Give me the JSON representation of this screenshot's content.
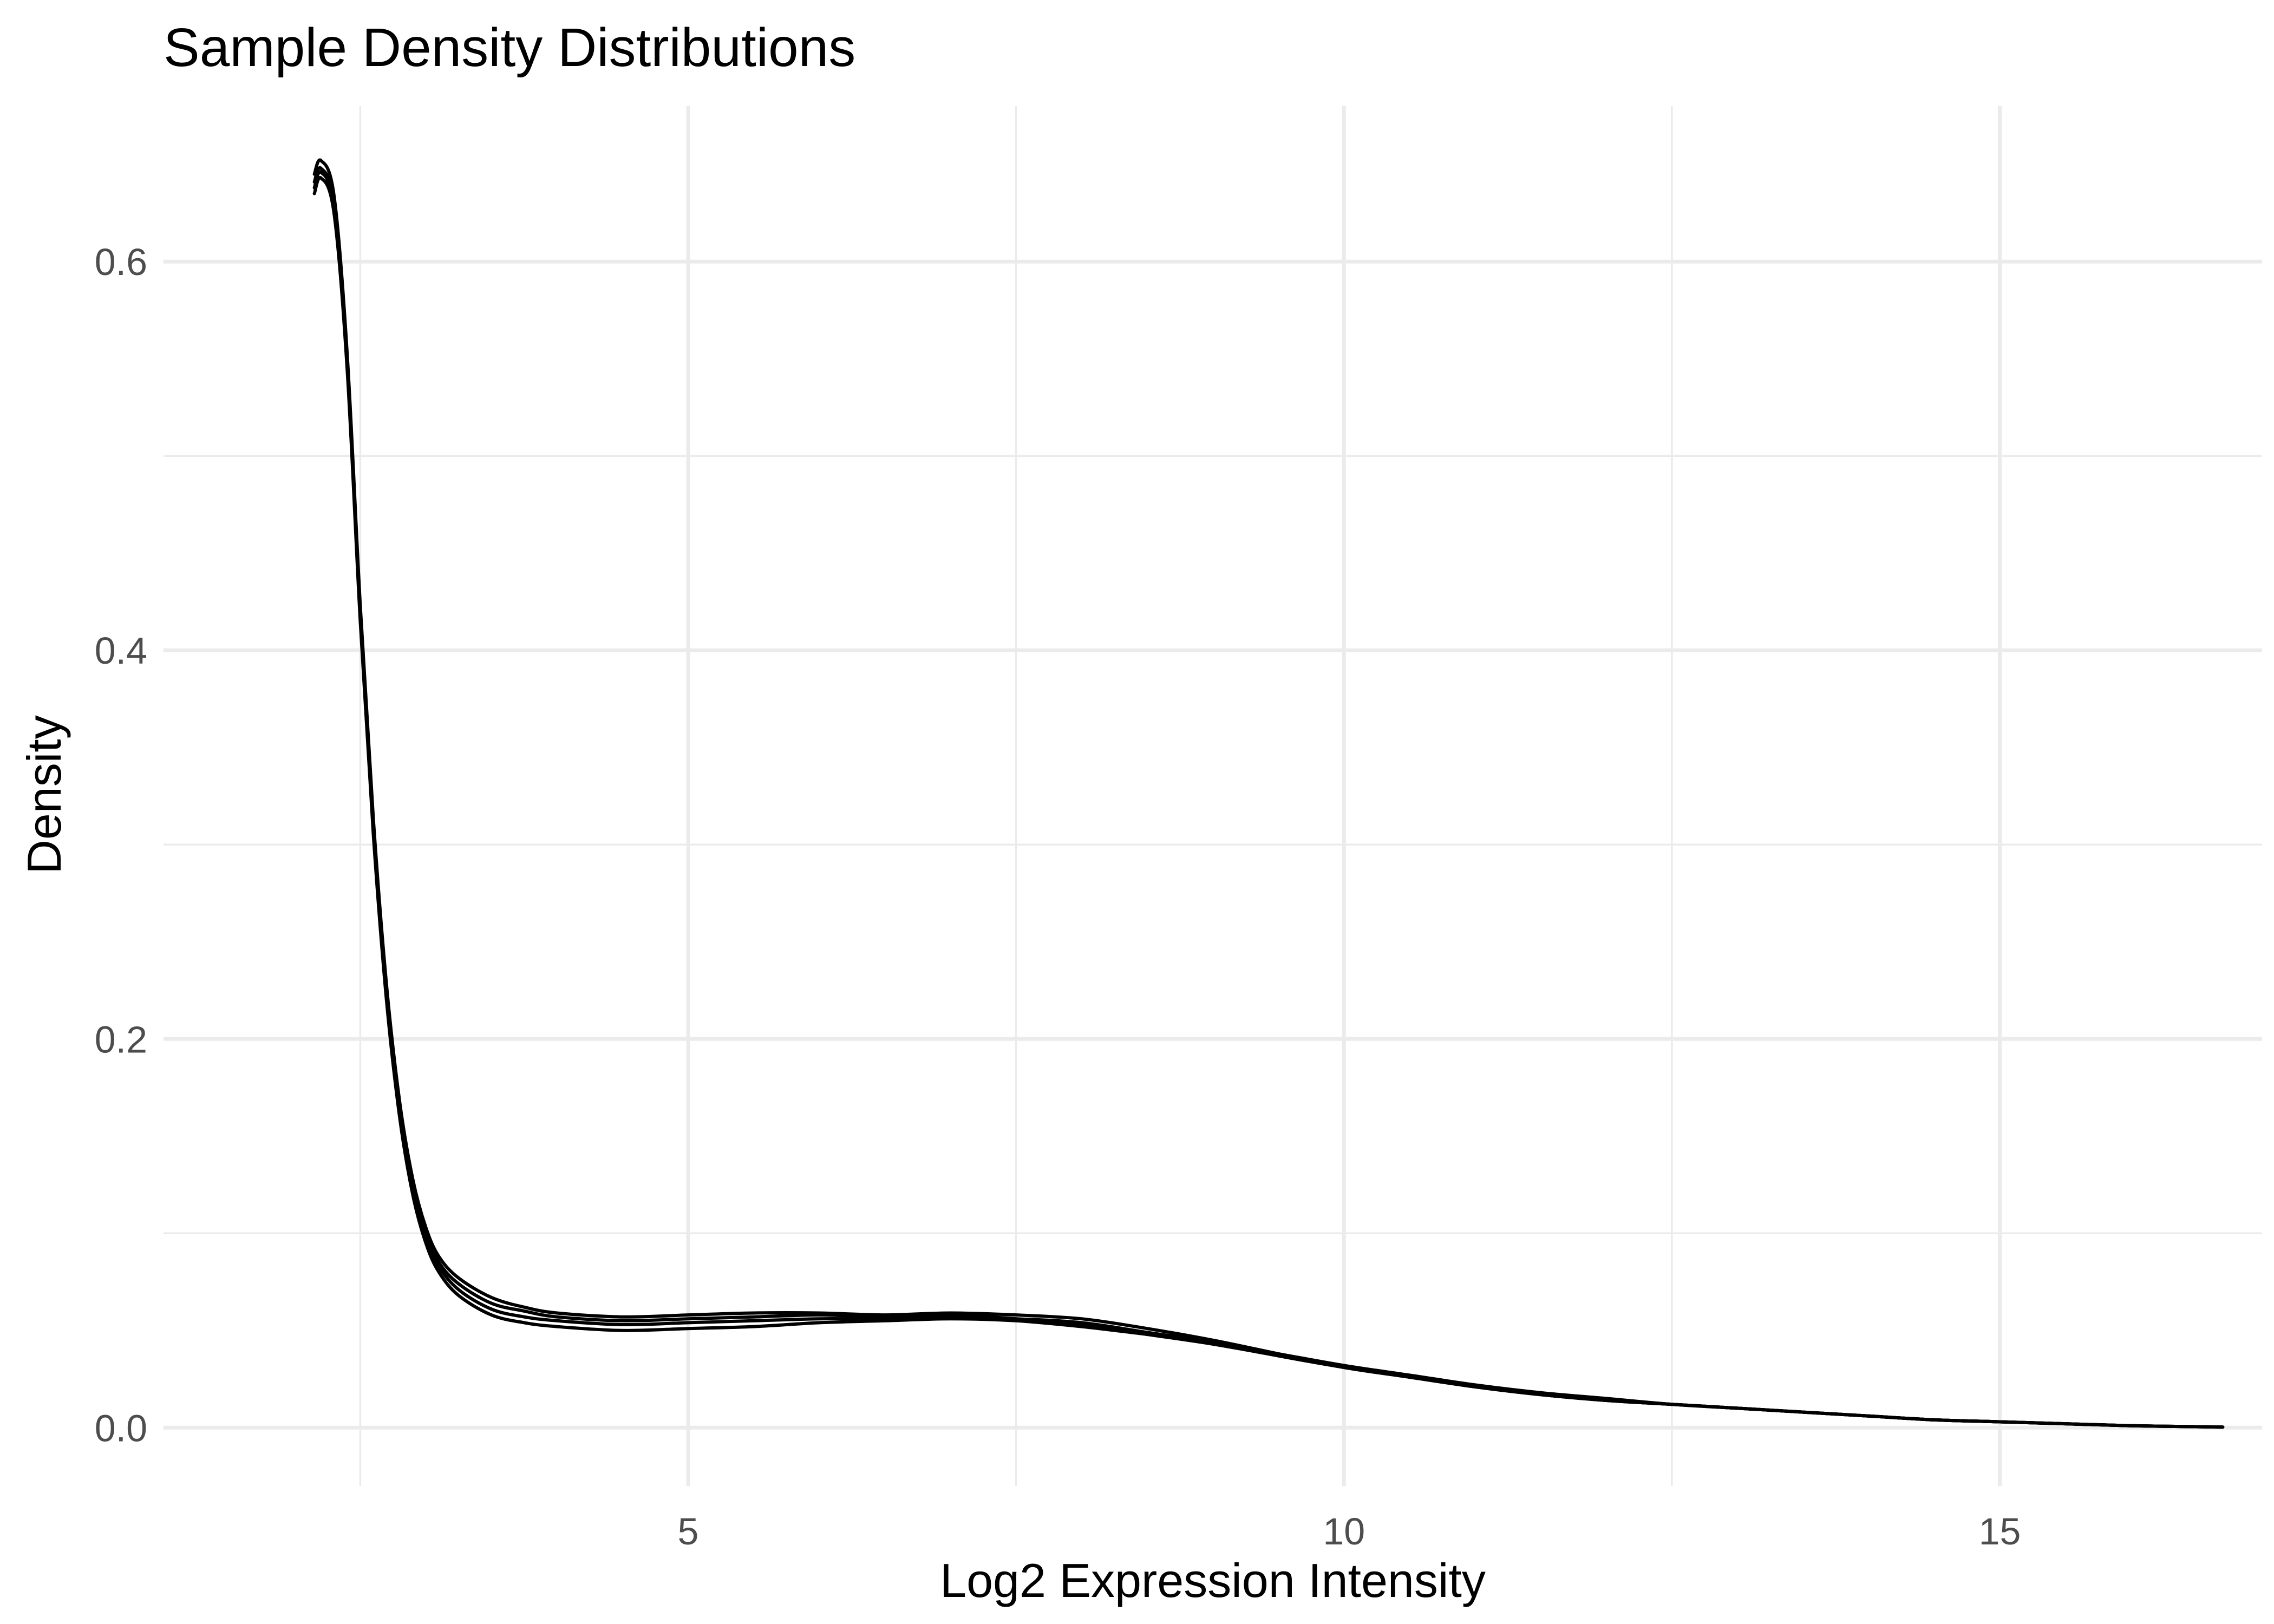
{
  "chart_data": {
    "type": "line",
    "title": "Sample Density Distributions",
    "xlabel": "Log2 Expression Intensity",
    "ylabel": "Density",
    "xlim": [
      1.0,
      17.0
    ],
    "ylim": [
      -0.03,
      0.68
    ],
    "x_ticks": [
      5,
      10,
      15
    ],
    "x_tick_labels": [
      "5",
      "10",
      "15"
    ],
    "x_minor_ticks": [
      2.5,
      7.5,
      12.5
    ],
    "y_ticks": [
      0.0,
      0.2,
      0.4,
      0.6
    ],
    "y_tick_labels": [
      "0.0",
      "0.2",
      "0.4",
      "0.6"
    ],
    "y_minor_ticks": [
      0.1,
      0.3,
      0.5
    ],
    "grid": true,
    "legend": "none",
    "line_color": "#000000",
    "series": [
      {
        "x": [
          2.15,
          2.2,
          2.3,
          2.4,
          2.5,
          2.6,
          2.7,
          2.8,
          2.9,
          3.0,
          3.1,
          3.25,
          3.5,
          3.75,
          4.0,
          4.5,
          5.0,
          5.5,
          6.0,
          6.5,
          7.0,
          7.5,
          8.0,
          8.5,
          9.0,
          9.5,
          10.0,
          10.5,
          11.0,
          11.5,
          12.0,
          12.5,
          13.0,
          13.5,
          14.0,
          14.5,
          15.0,
          15.5,
          16.0,
          16.5,
          16.7
        ],
        "y": [
          0.641,
          0.648,
          0.63,
          0.55,
          0.42,
          0.31,
          0.225,
          0.165,
          0.125,
          0.1,
          0.085,
          0.074,
          0.064,
          0.06,
          0.057,
          0.055,
          0.056,
          0.057,
          0.058,
          0.057,
          0.058,
          0.056,
          0.053,
          0.048,
          0.043,
          0.037,
          0.031,
          0.026,
          0.021,
          0.017,
          0.014,
          0.012,
          0.01,
          0.008,
          0.006,
          0.004,
          0.003,
          0.002,
          0.001,
          0.0005,
          0.0003
        ]
      },
      {
        "x": [
          2.15,
          2.2,
          2.3,
          2.4,
          2.5,
          2.6,
          2.7,
          2.8,
          2.9,
          3.0,
          3.1,
          3.25,
          3.5,
          3.75,
          4.0,
          4.5,
          5.0,
          5.5,
          6.0,
          6.5,
          7.0,
          7.5,
          8.0,
          8.5,
          9.0,
          9.5,
          10.0,
          10.5,
          11.0,
          11.5,
          12.0,
          12.5,
          13.0,
          13.5,
          14.0,
          14.5,
          15.0,
          15.5,
          16.0,
          16.5,
          16.7
        ],
        "y": [
          0.635,
          0.643,
          0.625,
          0.545,
          0.415,
          0.305,
          0.22,
          0.16,
          0.12,
          0.095,
          0.08,
          0.068,
          0.058,
          0.054,
          0.052,
          0.05,
          0.051,
          0.052,
          0.054,
          0.055,
          0.056,
          0.055,
          0.052,
          0.048,
          0.044,
          0.038,
          0.032,
          0.027,
          0.022,
          0.018,
          0.015,
          0.012,
          0.01,
          0.008,
          0.006,
          0.004,
          0.003,
          0.002,
          0.001,
          0.0005,
          0.0003
        ]
      },
      {
        "x": [
          2.15,
          2.2,
          2.3,
          2.4,
          2.5,
          2.6,
          2.7,
          2.8,
          2.9,
          3.0,
          3.1,
          3.25,
          3.5,
          3.75,
          4.0,
          4.5,
          5.0,
          5.5,
          6.0,
          6.5,
          7.0,
          7.5,
          8.0,
          8.5,
          9.0,
          9.5,
          10.0,
          10.5,
          11.0,
          11.5,
          12.0,
          12.5,
          13.0,
          13.5,
          14.0,
          14.5,
          15.0,
          15.5,
          16.0,
          16.5,
          16.7
        ],
        "y": [
          0.645,
          0.652,
          0.634,
          0.553,
          0.423,
          0.313,
          0.228,
          0.168,
          0.128,
          0.103,
          0.088,
          0.077,
          0.067,
          0.062,
          0.059,
          0.057,
          0.058,
          0.059,
          0.059,
          0.058,
          0.059,
          0.058,
          0.056,
          0.051,
          0.045,
          0.038,
          0.031,
          0.026,
          0.021,
          0.017,
          0.014,
          0.012,
          0.01,
          0.008,
          0.006,
          0.004,
          0.003,
          0.002,
          0.001,
          0.0005,
          0.0003
        ]
      },
      {
        "x": [
          2.15,
          2.2,
          2.3,
          2.4,
          2.5,
          2.6,
          2.7,
          2.8,
          2.9,
          3.0,
          3.1,
          3.25,
          3.5,
          3.75,
          4.0,
          4.5,
          5.0,
          5.5,
          6.0,
          6.5,
          7.0,
          7.5,
          8.0,
          8.5,
          9.0,
          9.5,
          10.0,
          10.5,
          11.0,
          11.5,
          12.0,
          12.5,
          13.0,
          13.5,
          14.0,
          14.5,
          15.0,
          15.5,
          16.0,
          16.5,
          16.7
        ],
        "y": [
          0.638,
          0.646,
          0.628,
          0.548,
          0.418,
          0.308,
          0.223,
          0.163,
          0.123,
          0.098,
          0.083,
          0.071,
          0.061,
          0.057,
          0.055,
          0.053,
          0.054,
          0.055,
          0.056,
          0.056,
          0.057,
          0.056,
          0.054,
          0.049,
          0.044,
          0.037,
          0.031,
          0.026,
          0.021,
          0.017,
          0.014,
          0.012,
          0.01,
          0.008,
          0.006,
          0.004,
          0.003,
          0.002,
          0.001,
          0.0005,
          0.0003
        ]
      }
    ]
  }
}
